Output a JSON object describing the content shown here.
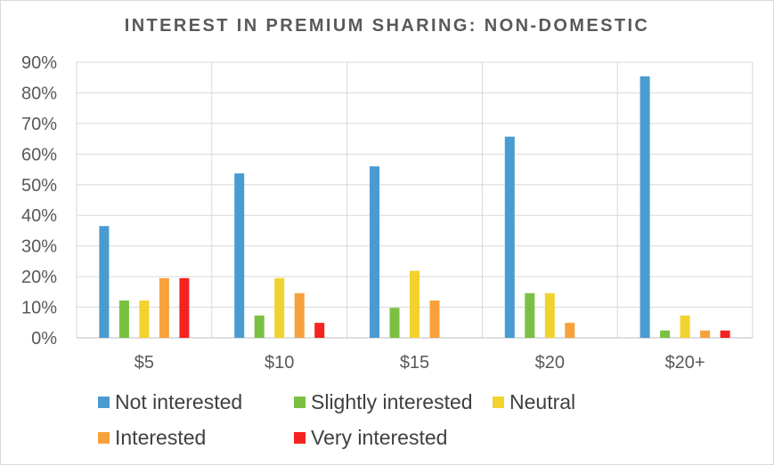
{
  "chart_data": {
    "type": "bar",
    "title": "INTEREST IN PREMIUM SHARING: NON-DOMESTIC",
    "categories": [
      "$5",
      "$10",
      "$15",
      "$20",
      "$20+"
    ],
    "series": [
      {
        "name": "Not interested",
        "color": "#4a9bd0",
        "values": [
          36.5,
          53.7,
          56.0,
          65.7,
          85.4
        ]
      },
      {
        "name": "Slightly interested",
        "color": "#7ac142",
        "values": [
          12.2,
          7.3,
          9.8,
          14.6,
          2.4
        ]
      },
      {
        "name": "Neutral",
        "color": "#f2d22e",
        "values": [
          12.2,
          19.5,
          21.9,
          14.6,
          7.3
        ]
      },
      {
        "name": "Interested",
        "color": "#f7a13c",
        "values": [
          19.5,
          14.6,
          12.2,
          4.9,
          2.4
        ]
      },
      {
        "name": "Very interested",
        "color": "#f4231f",
        "values": [
          19.5,
          4.9,
          0,
          0,
          2.4
        ]
      }
    ],
    "y_ticks": [
      "0%",
      "10%",
      "20%",
      "30%",
      "40%",
      "50%",
      "60%",
      "70%",
      "80%",
      "90%"
    ],
    "ylim": [
      0,
      90
    ],
    "grid": true,
    "legend_position": "bottom"
  }
}
